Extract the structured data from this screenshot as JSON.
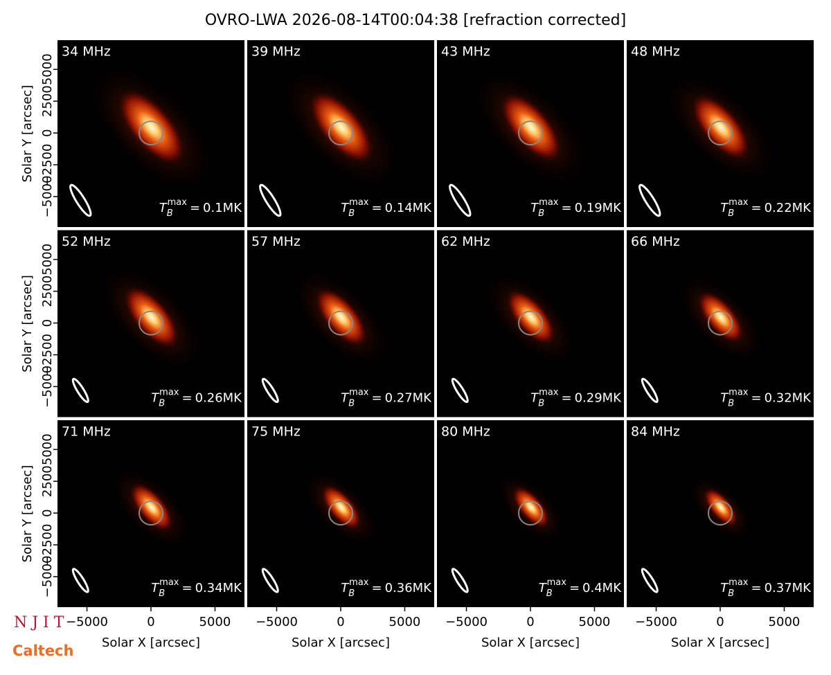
{
  "title": "OVRO-LWA 2026-08-14T00:04:38 [refraction corrected]",
  "logos": [
    "N J I T",
    "Caltech"
  ],
  "annotation_symbol": {
    "base": "T",
    "sub": "B",
    "sup": "max",
    "sign": "="
  },
  "axes": {
    "xlabel": "Solar X [arcsec]",
    "ylabel": "Solar Y [arcsec]",
    "xlim": [
      -7300,
      7300
    ],
    "ylim": [
      -7400,
      7300
    ],
    "xticks": [
      {
        "value": -5000,
        "label": "−5000"
      },
      0,
      5000
    ],
    "yticks": [
      {
        "value": -5000,
        "label": "−5000"
      },
      {
        "value": -2500,
        "label": "−2500"
      },
      0,
      2500,
      5000
    ]
  },
  "chart_data": [
    {
      "type": "image",
      "label": "34 MHz",
      "values": [
        0.1
      ],
      "value_labels": [
        "0.1MK"
      ]
    },
    {
      "type": "image",
      "label": "39 MHz",
      "values": [
        0.14
      ],
      "value_labels": [
        "0.14MK"
      ]
    },
    {
      "type": "image",
      "label": "43 MHz",
      "values": [
        0.19
      ],
      "value_labels": [
        "0.19MK"
      ]
    },
    {
      "type": "image",
      "label": "48 MHz",
      "values": [
        0.22
      ],
      "value_labels": [
        "0.22MK"
      ]
    },
    {
      "type": "image",
      "label": "52 MHz",
      "values": [
        0.26
      ],
      "value_labels": [
        "0.26MK"
      ]
    },
    {
      "type": "image",
      "label": "57 MHz",
      "values": [
        0.27
      ],
      "value_labels": [
        "0.27MK"
      ]
    },
    {
      "type": "image",
      "label": "62 MHz",
      "values": [
        0.29
      ],
      "value_labels": [
        "0.29MK"
      ]
    },
    {
      "type": "image",
      "label": "66 MHz",
      "values": [
        0.32
      ],
      "value_labels": [
        "0.32MK"
      ]
    },
    {
      "type": "image",
      "label": "71 MHz",
      "values": [
        0.34
      ],
      "value_labels": [
        "0.34MK"
      ]
    },
    {
      "type": "image",
      "label": "75 MHz",
      "values": [
        0.36
      ],
      "value_labels": [
        "0.36MK"
      ]
    },
    {
      "type": "image",
      "label": "80 MHz",
      "values": [
        0.4
      ],
      "value_labels": [
        "0.4MK"
      ]
    },
    {
      "type": "image",
      "label": "84 MHz",
      "values": [
        0.37
      ],
      "value_labels": [
        "0.37MK"
      ]
    }
  ]
}
